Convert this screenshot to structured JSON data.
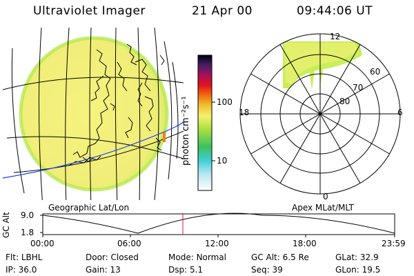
{
  "header": {
    "instrument": "Ultraviolet Imager",
    "date": "21 Apr 00",
    "time": "09:44:06 UT"
  },
  "colorbar": {
    "label": "photon cm⁻²s⁻¹",
    "ticks": [
      "100",
      "10"
    ]
  },
  "polar": {
    "mlt_labels": {
      "top": "12",
      "left": "18",
      "right": "6",
      "bottom": "0"
    },
    "lat_labels": [
      "60",
      "70",
      "80"
    ]
  },
  "altitude_plot": {
    "left_title": "Geographic Lat/Lon",
    "right_title": "Apex MLat/MLT",
    "axis_label": "GC Alt",
    "y_ticks": [
      "9.0",
      "1.8"
    ],
    "x_ticks": [
      "00:00",
      "06:00",
      "12:00",
      "18:00",
      "23:59"
    ],
    "current_time_marker": "09:44:06"
  },
  "status": {
    "row1": [
      {
        "key": "Flt:",
        "value": "LBHL"
      },
      {
        "key": "Door:",
        "value": "Closed"
      },
      {
        "key": "Mode:",
        "value": "Normal"
      },
      {
        "key": "GC Alt:",
        "value": "6.5 Re"
      },
      {
        "key": "GLat:",
        "value": "32.9"
      }
    ],
    "row2": [
      {
        "key": "IP:",
        "value": "36.0"
      },
      {
        "key": "Gain:",
        "value": "13"
      },
      {
        "key": "Dsp:",
        "value": "5.1"
      },
      {
        "key": "Seq:",
        "value": "39"
      },
      {
        "key": "GLon:",
        "value": "19.5"
      }
    ]
  },
  "colors": {
    "aurora_yellow": "#f2f08a",
    "aurora_green": "#c8ee5a",
    "marker_red": "#d02020"
  }
}
